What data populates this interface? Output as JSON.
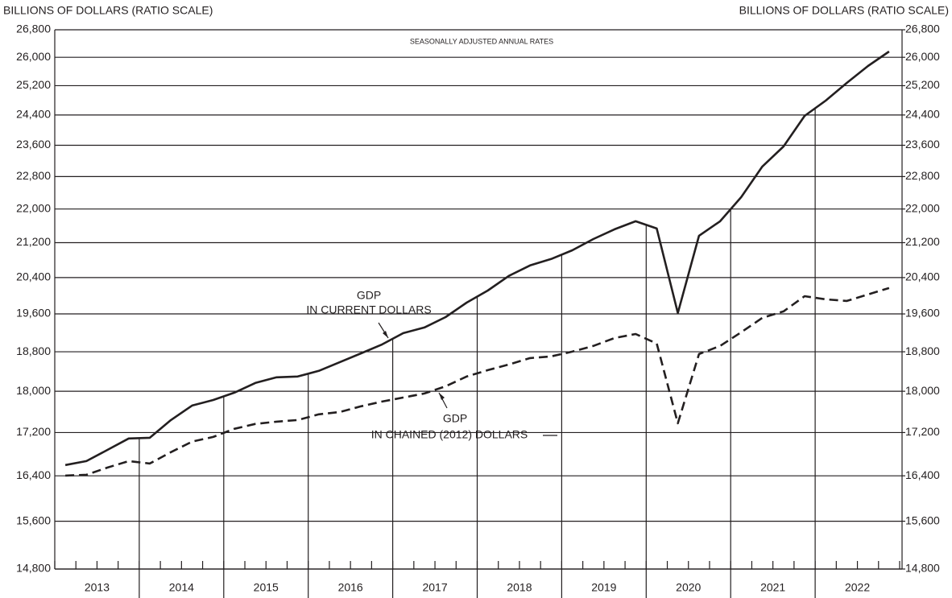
{
  "chart_data": {
    "type": "line",
    "ylabel": "BILLIONS OF DOLLARS (RATIO SCALE)",
    "y2label": "BILLIONS OF DOLLARS (RATIO SCALE)",
    "subtitle": "SEASONALLY ADJUSTED ANNUAL RATES",
    "yscale": "log",
    "grid": true,
    "x": [
      2013.125,
      2013.375,
      2013.625,
      2013.875,
      2014.125,
      2014.375,
      2014.625,
      2014.875,
      2015.125,
      2015.375,
      2015.625,
      2015.875,
      2016.125,
      2016.375,
      2016.625,
      2016.875,
      2017.125,
      2017.375,
      2017.625,
      2017.875,
      2018.125,
      2018.375,
      2018.625,
      2018.875,
      2019.125,
      2019.375,
      2019.625,
      2019.875,
      2020.125,
      2020.375,
      2020.625,
      2020.875,
      2021.125,
      2021.375,
      2021.625,
      2021.875,
      2022.125,
      2022.375,
      2022.625,
      2022.875
    ],
    "xlim": [
      2013,
      2023
    ],
    "xticks": [
      {
        "value": 2013.5,
        "label": "2013"
      },
      {
        "value": 2014.5,
        "label": "2014"
      },
      {
        "value": 2015.5,
        "label": "2015"
      },
      {
        "value": 2016.5,
        "label": "2016"
      },
      {
        "value": 2017.5,
        "label": "2017"
      },
      {
        "value": 2018.5,
        "label": "2018"
      },
      {
        "value": 2019.5,
        "label": "2019"
      },
      {
        "value": 2020.5,
        "label": "2020"
      },
      {
        "value": 2021.5,
        "label": "2021"
      },
      {
        "value": 2022.5,
        "label": "2022"
      }
    ],
    "ylim": [
      14800,
      26800
    ],
    "yticks": [
      {
        "value": 14800,
        "label": "14,800"
      },
      {
        "value": 15600,
        "label": "15,600"
      },
      {
        "value": 16400,
        "label": "16,400"
      },
      {
        "value": 17200,
        "label": "17,200"
      },
      {
        "value": 18000,
        "label": "18,000"
      },
      {
        "value": 18800,
        "label": "18,800"
      },
      {
        "value": 19600,
        "label": "19,600"
      },
      {
        "value": 20400,
        "label": "20,400"
      },
      {
        "value": 21200,
        "label": "21,200"
      },
      {
        "value": 22000,
        "label": "22,000"
      },
      {
        "value": 22800,
        "label": "22,800"
      },
      {
        "value": 23600,
        "label": "23,600"
      },
      {
        "value": 24400,
        "label": "24,400"
      },
      {
        "value": 25200,
        "label": "25,200"
      },
      {
        "value": 26000,
        "label": "26,000"
      },
      {
        "value": 26800,
        "label": "26,800"
      }
    ],
    "y2lim": [
      14800,
      26800
    ],
    "y2ticks": [
      {
        "value": 14800,
        "label": "14,800"
      },
      {
        "value": 15600,
        "label": "15,600"
      },
      {
        "value": 16400,
        "label": "16,400"
      },
      {
        "value": 17200,
        "label": "17,200"
      },
      {
        "value": 18000,
        "label": "18,000"
      },
      {
        "value": 18800,
        "label": "18,800"
      },
      {
        "value": 19600,
        "label": "19,600"
      },
      {
        "value": 20400,
        "label": "20,400"
      },
      {
        "value": 21200,
        "label": "21,200"
      },
      {
        "value": 22000,
        "label": "22,000"
      },
      {
        "value": 22800,
        "label": "22,800"
      },
      {
        "value": 23600,
        "label": "23,600"
      },
      {
        "value": 24400,
        "label": "24,400"
      },
      {
        "value": 25200,
        "label": "25,200"
      },
      {
        "value": 26000,
        "label": "26,000"
      },
      {
        "value": 26800,
        "label": "26,800"
      }
    ],
    "series": [
      {
        "label_lines": [
          "GDP",
          "IN CURRENT DOLLARS"
        ],
        "color": "#231f20",
        "dash": false,
        "values": [
          16595,
          16667,
          16876,
          17088,
          17101,
          17439,
          17718,
          17827,
          17972,
          18165,
          18278,
          18294,
          18408,
          18588,
          18768,
          18953,
          19189,
          19309,
          19532,
          19845,
          20111,
          20438,
          20674,
          20821,
          21022,
          21285,
          21514,
          21705,
          21534,
          19620,
          21362,
          21705,
          22290,
          23053,
          23568,
          24375,
          24790,
          25278,
          25752,
          26167
        ]
      },
      {
        "label_lines": [
          "GDP",
          "IN CHAINED (2012) DOLLARS"
        ],
        "color": "#231f20",
        "dash": true,
        "values": [
          16404,
          16418,
          16550,
          16667,
          16624,
          16833,
          17029,
          17117,
          17270,
          17364,
          17407,
          17439,
          17549,
          17594,
          17704,
          17798,
          17876,
          17956,
          18098,
          18294,
          18423,
          18538,
          18669,
          18704,
          18803,
          18921,
          19087,
          19172,
          18972,
          17377,
          18752,
          18921,
          19208,
          19516,
          19655,
          19987,
          19918,
          19883,
          20025,
          20167
        ]
      }
    ]
  }
}
